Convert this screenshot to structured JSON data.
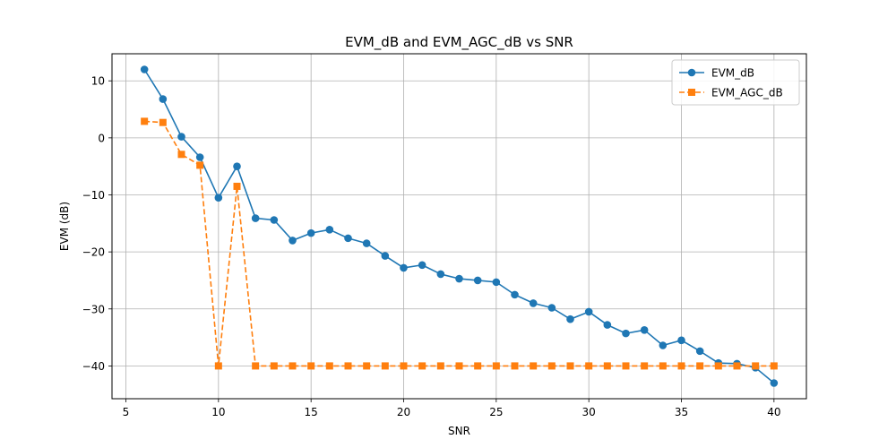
{
  "chart_data": {
    "type": "line",
    "title": "EVM_dB and EVM_AGC_dB vs SNR",
    "xlabel": "SNR",
    "ylabel": "EVM (dB)",
    "xlim": [
      4.25,
      41.75
    ],
    "ylim": [
      -45.75,
      14.75
    ],
    "x_ticks": [
      5,
      10,
      15,
      20,
      25,
      30,
      35,
      40
    ],
    "x_tick_labels": [
      "5",
      "10",
      "15",
      "20",
      "25",
      "30",
      "35",
      "40"
    ],
    "y_ticks": [
      10,
      0,
      -10,
      -20,
      -30,
      -40
    ],
    "y_tick_labels": [
      "10",
      "0",
      "−10",
      "−20",
      "−30",
      "−40"
    ],
    "grid": true,
    "legend_position": "top-right",
    "x": [
      6,
      7,
      8,
      9,
      10,
      11,
      12,
      13,
      14,
      15,
      16,
      17,
      18,
      19,
      20,
      21,
      22,
      23,
      24,
      25,
      26,
      27,
      28,
      29,
      30,
      31,
      32,
      33,
      34,
      35,
      36,
      37,
      38,
      39,
      40
    ],
    "series": [
      {
        "name": "EVM_dB",
        "color": "#1f77b4",
        "line_style": "solid",
        "marker": "circle",
        "values": [
          12.0,
          6.8,
          0.2,
          -3.4,
          -10.5,
          -5.0,
          -14.1,
          -14.4,
          -18.0,
          -16.7,
          -16.1,
          -17.6,
          -18.5,
          -20.7,
          -22.8,
          -22.3,
          -23.9,
          -24.7,
          -25.0,
          -25.3,
          -27.5,
          -29.0,
          -29.8,
          -31.8,
          -30.5,
          -32.8,
          -34.3,
          -33.7,
          -36.4,
          -35.5,
          -37.4,
          -39.5,
          -39.6,
          -40.3,
          -43.0
        ]
      },
      {
        "name": "EVM_AGC_dB",
        "color": "#ff7f0e",
        "line_style": "dashed",
        "marker": "square",
        "values": [
          2.9,
          2.7,
          -2.9,
          -4.8,
          -40.0,
          -8.5,
          -40.0,
          -40.0,
          -40.0,
          -40.0,
          -40.0,
          -40.0,
          -40.0,
          -40.0,
          -40.0,
          -40.0,
          -40.0,
          -40.0,
          -40.0,
          -40.0,
          -40.0,
          -40.0,
          -40.0,
          -40.0,
          -40.0,
          -40.0,
          -40.0,
          -40.0,
          -40.0,
          -40.0,
          -40.0,
          -40.0,
          -40.0,
          -40.0,
          -40.0
        ]
      }
    ]
  }
}
